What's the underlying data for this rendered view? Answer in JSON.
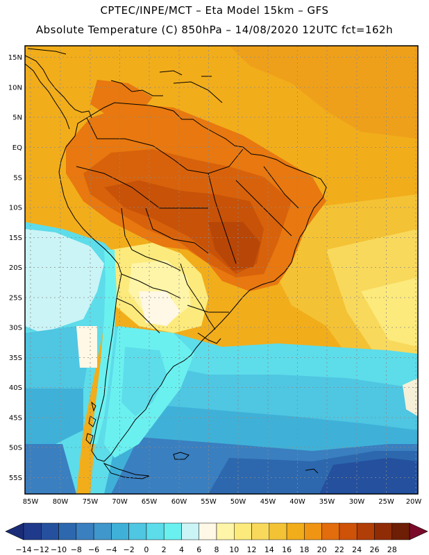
{
  "header": {
    "line1": "CPTEC/INPE/MCT  –   Eta Model 15km – GFS",
    "line2": "Absolute Temperature (C) 850hPa – 14/08/2020 12UTC fct=162h"
  },
  "axes": {
    "lat_labels": [
      "15N",
      "10N",
      "5N",
      "EQ",
      "5S",
      "10S",
      "15S",
      "20S",
      "25S",
      "30S",
      "35S",
      "40S",
      "45S",
      "50S",
      "55S"
    ],
    "lon_labels": [
      "85W",
      "80W",
      "75W",
      "70W",
      "65W",
      "60W",
      "55W",
      "50W",
      "45W",
      "40W",
      "35W",
      "30W",
      "25W",
      "20W"
    ]
  },
  "colorbar": {
    "labels": [
      "-14",
      "-12",
      "-10",
      "-8",
      "-6",
      "-4",
      "-2",
      "0",
      "2",
      "4",
      "6",
      "8",
      "10",
      "12",
      "14",
      "16",
      "18",
      "20",
      "22",
      "24",
      "26",
      "28"
    ],
    "colors": [
      "#1f3a8a",
      "#24509e",
      "#2d68ae",
      "#3a7fc0",
      "#3f97cc",
      "#3fb1d8",
      "#4fc6e2",
      "#5ddcea",
      "#6bf0f0",
      "#cbf4f6",
      "#fff8e6",
      "#fff5a8",
      "#fcea7c",
      "#f8d95c",
      "#f4c235",
      "#f2ad1b",
      "#ef9513",
      "#e36c0c",
      "#cf5209",
      "#b13e07",
      "#8f2c06",
      "#6e1e05"
    ],
    "under_color": "#1a2c78",
    "over_color": "#7b0a2a"
  }
}
